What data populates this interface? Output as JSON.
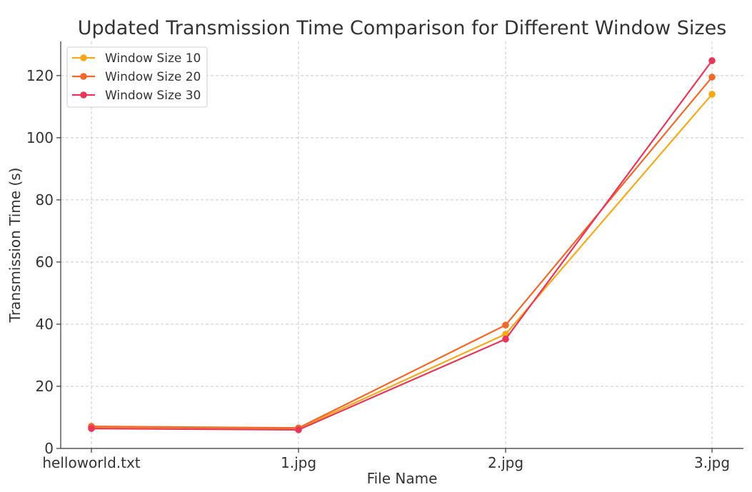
{
  "chart_data": {
    "type": "line",
    "title": "Updated Transmission Time Comparison for Different Window Sizes",
    "xlabel": "File Name",
    "ylabel": "Transmission Time (s)",
    "categories": [
      "helloworld.txt",
      "1.jpg",
      "2.jpg",
      "3.jpg"
    ],
    "ylim": [
      0,
      131
    ],
    "yticks": [
      0,
      20,
      40,
      60,
      80,
      100,
      120
    ],
    "grid": true,
    "legend_position": "top-left",
    "series": [
      {
        "name": "Window Size 10",
        "color": "#f5a91a",
        "values": [
          6.8,
          6.4,
          36.8,
          114.0
        ]
      },
      {
        "name": "Window Size 20",
        "color": "#f0692a",
        "values": [
          7.1,
          6.6,
          39.7,
          119.5
        ]
      },
      {
        "name": "Window Size 30",
        "color": "#e8365a",
        "values": [
          6.4,
          6.0,
          35.2,
          124.8
        ]
      }
    ]
  }
}
